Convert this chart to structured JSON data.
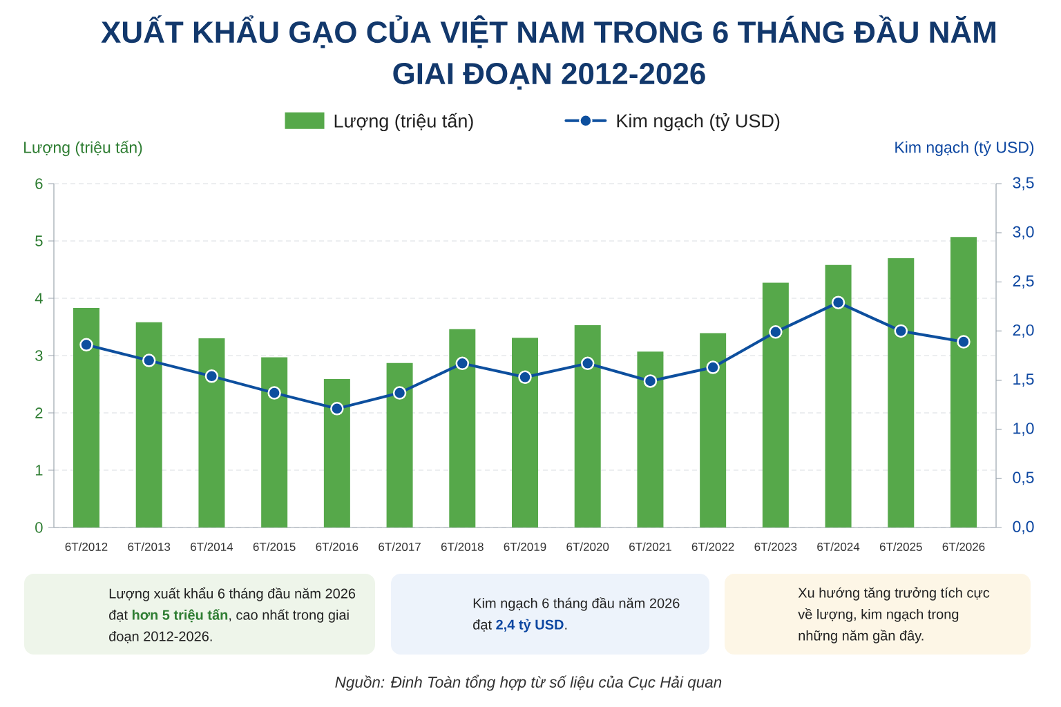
{
  "chart_data": {
    "type": "bar",
    "title": "XUẤT KHẨU GẠO CỦA VIỆT NAM TRONG 6 THÁNG ĐẦU NĂM GIAI ĐOẠN 2012-2026",
    "categories": [
      "6T/2012",
      "6T/2013",
      "6T/2014",
      "6T/2015",
      "6T/2016",
      "6T/2017",
      "6T/2018",
      "6T/2019",
      "6T/2020",
      "6T/2021",
      "6T/2022",
      "6T/2023",
      "6T/2024",
      "6T/2025",
      "6T/2026"
    ],
    "series": [
      {
        "name": "Lượng (triệu tấn)",
        "color": "#56a84a",
        "values": [
          3.83,
          3.58,
          3.3,
          2.97,
          2.59,
          2.87,
          3.46,
          3.31,
          3.53,
          3.07,
          3.39,
          4.27,
          4.58,
          4.7,
          5.07
        ]
      },
      {
        "name": "Kim ngạch (tỷ USD)",
        "type": "line",
        "axis": "y2",
        "color": "#0d4f9e",
        "values": [
          1.86,
          1.7,
          1.54,
          1.37,
          1.21,
          1.37,
          1.67,
          1.53,
          1.67,
          1.49,
          1.63,
          1.99,
          2.29,
          2.0,
          1.89
        ]
      }
    ],
    "ylabel": "Lượng (triệu tấn)",
    "y2label": "Kim ngạch (tỷ USD)",
    "ylim": [
      0,
      6
    ],
    "yticks": [
      0,
      1,
      2,
      3,
      4,
      5,
      6
    ],
    "y2lim": [
      0,
      3.5
    ],
    "y2ticks": [
      {
        "value": 0,
        "label": "0,0"
      },
      {
        "value": 0.5,
        "label": "0,5"
      },
      {
        "value": 1,
        "label": "1,0"
      },
      {
        "value": 1.5,
        "label": "1,5"
      },
      {
        "value": 2,
        "label": "2,0"
      },
      {
        "value": 2.5,
        "label": "2,5"
      },
      {
        "value": 3,
        "label": "3,0"
      },
      {
        "value": 3.5,
        "label": "3,5"
      }
    ],
    "grid": "y",
    "legend": "top",
    "marker": "circle",
    "annotations": [
      "Lượng xuất khẩu 6 tháng đầu năm 2026 đạt **hơn 5 triệu tấn**, cao nhất trong giai đoạn 2012-2026.",
      "Kim ngạch 6 tháng đầu năm 2026 đạt **2,4 tỷ USD**.",
      "Xu hướng tăng trưởng tích cực về lượng, kim ngạch trong những năm gần đây.",
      "Nguồn: Đinh Toàn tổng hợp từ số liệu của Cục Hải quan"
    ]
  }
}
